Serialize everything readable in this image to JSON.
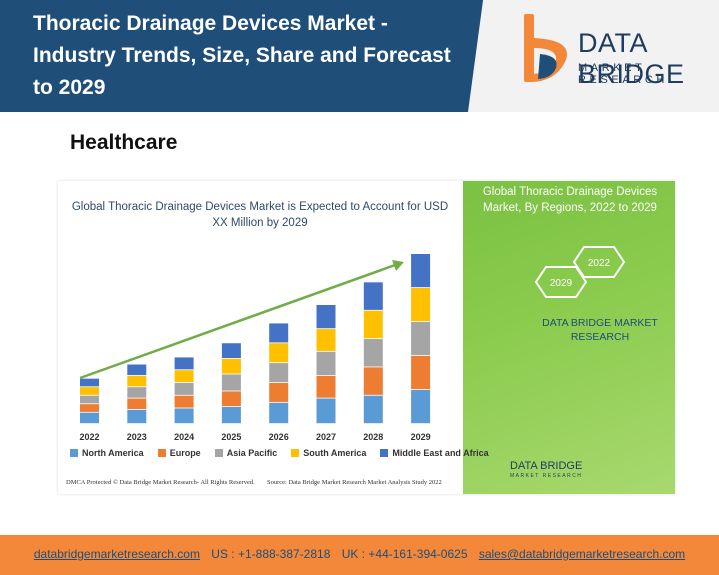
{
  "header": {
    "title": "Thoracic Drainage Devices Market - Industry Trends, Size, Share and Forecast to 2029",
    "logo_name": "DATA BRIDGE",
    "logo_sub": "MARKET RESEARCH"
  },
  "category": "Healthcare",
  "side_panel": {
    "title": "Global Thoracic Drainage Devices Market, By Regions, 2022 to 2029",
    "hex_labels": [
      "2022",
      "2029"
    ],
    "brand": "DATA BRIDGE MARKET RESEARCH"
  },
  "small_logo": {
    "name": "DATA BRIDGE",
    "sub": "MARKET RESEARCH"
  },
  "notes": {
    "dmca": "DMCA Protected © Data Bridge Market Research- All Rights Reserved.",
    "source": "Source: Data Bridge Market Research Market Analysis Study 2022"
  },
  "chart_data": {
    "type": "bar",
    "stacked": true,
    "title": "Global Thoracic Drainage Devices Market is Expected to Account for USD XX Million by 2029",
    "categories": [
      "2022",
      "2023",
      "2024",
      "2025",
      "2026",
      "2027",
      "2028",
      "2029"
    ],
    "series": [
      {
        "name": "North America",
        "color": "#5b9bd5",
        "values": [
          4,
          5,
          5.5,
          6,
          7.5,
          9,
          10,
          12
        ]
      },
      {
        "name": "Europe",
        "color": "#ed7d31",
        "values": [
          3,
          4,
          4.5,
          5.5,
          7,
          8,
          10,
          12
        ]
      },
      {
        "name": "Asia Pacific",
        "color": "#a5a5a5",
        "values": [
          3,
          4,
          4.5,
          6,
          7,
          8.5,
          10,
          12
        ]
      },
      {
        "name": "South America",
        "color": "#ffc000",
        "values": [
          3,
          4,
          4.5,
          5.5,
          7,
          8,
          10,
          12
        ]
      },
      {
        "name": "Middle East and Africa",
        "color": "#4472c4",
        "values": [
          3,
          4,
          4.5,
          5.5,
          7,
          8.5,
          10,
          12
        ]
      }
    ],
    "ylim": [
      0,
      60
    ],
    "grid": false,
    "legend": "bottom",
    "trend_arrow": true
  },
  "footer": {
    "website": "databridgemarketresearch.com",
    "us_phone": "US : +1-888-387-2818",
    "uk_phone": "UK : +44-161-394-0625",
    "email": "sales@databridgemarketresearch.com"
  },
  "colors": {
    "header_bg": "#1f4e79",
    "footer_bg": "#f3883a",
    "side_panel_green": "#8ccc4f",
    "arrow_green": "#70ad47"
  }
}
